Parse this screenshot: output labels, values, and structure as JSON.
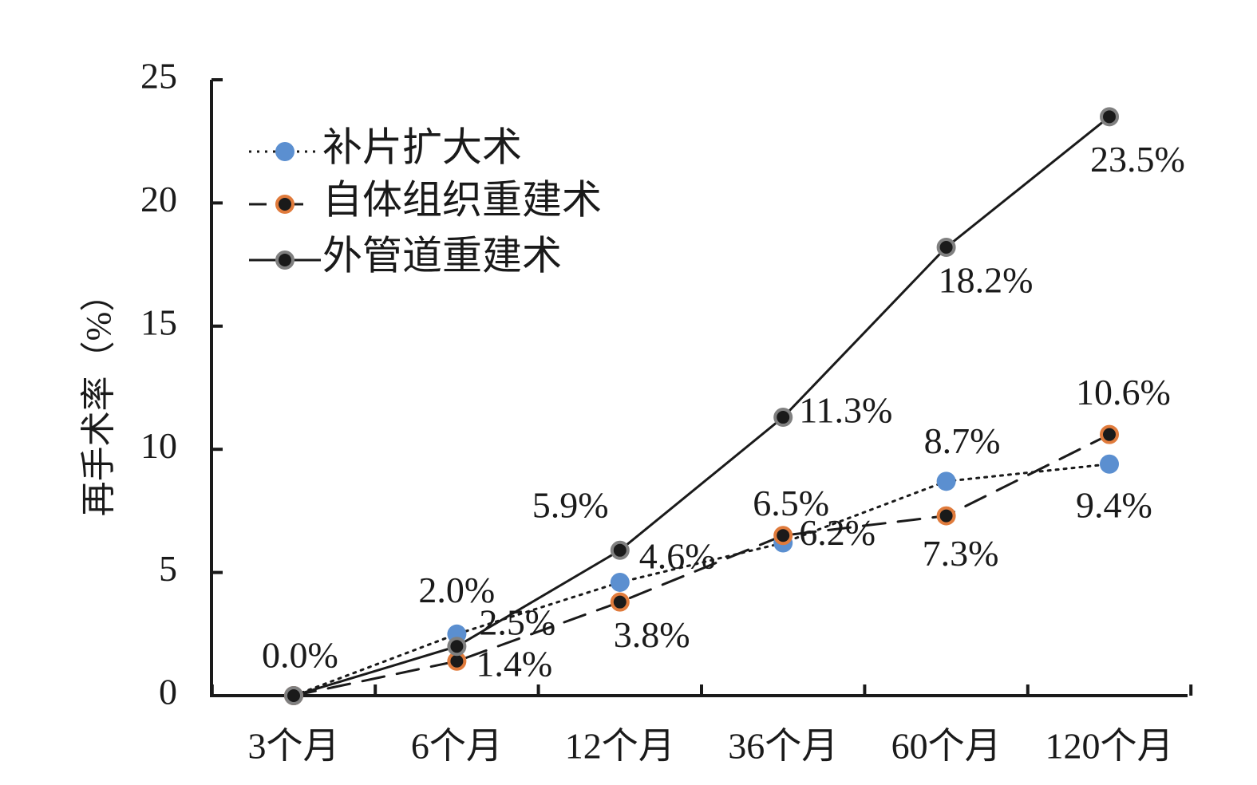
{
  "chart_data": {
    "type": "line",
    "title": "",
    "xlabel": "",
    "ylabel": "再手术率（%）",
    "ylim": [
      0,
      25
    ],
    "yticks": [
      0,
      5,
      10,
      15,
      20,
      25
    ],
    "categories": [
      "3个月",
      "6个月",
      "12个月",
      "36个月",
      "60个月",
      "120个月"
    ],
    "legend_position": "top-left",
    "series": [
      {
        "name": "补片扩大术",
        "values": [
          0,
          2.5,
          4.6,
          6.2,
          8.7,
          9.4
        ],
        "labels": [
          "",
          "2.5%",
          "4.6%",
          "6.2%",
          "8.7%",
          "9.4%"
        ],
        "line_style": "dotted",
        "marker_fill": "#5b8fd0",
        "marker_stroke": "#5b8fd0"
      },
      {
        "name": "自体组织重建术",
        "values": [
          0,
          1.4,
          3.8,
          6.5,
          7.3,
          10.6
        ],
        "labels": [
          "",
          "1.4%",
          "3.8%",
          "6.5%",
          "7.3%",
          "10.6%"
        ],
        "line_style": "dashed",
        "marker_fill": "#1a1a1a",
        "marker_stroke": "#e07b3c"
      },
      {
        "name": "外管道重建术",
        "values": [
          0,
          2.0,
          5.9,
          11.3,
          18.2,
          23.5
        ],
        "labels": [
          "0.0%",
          "2.0%",
          "5.9%",
          "11.3%",
          "18.2%",
          "23.5%"
        ],
        "line_style": "solid",
        "marker_fill": "#1a1a1a",
        "marker_stroke": "#808080"
      }
    ]
  }
}
